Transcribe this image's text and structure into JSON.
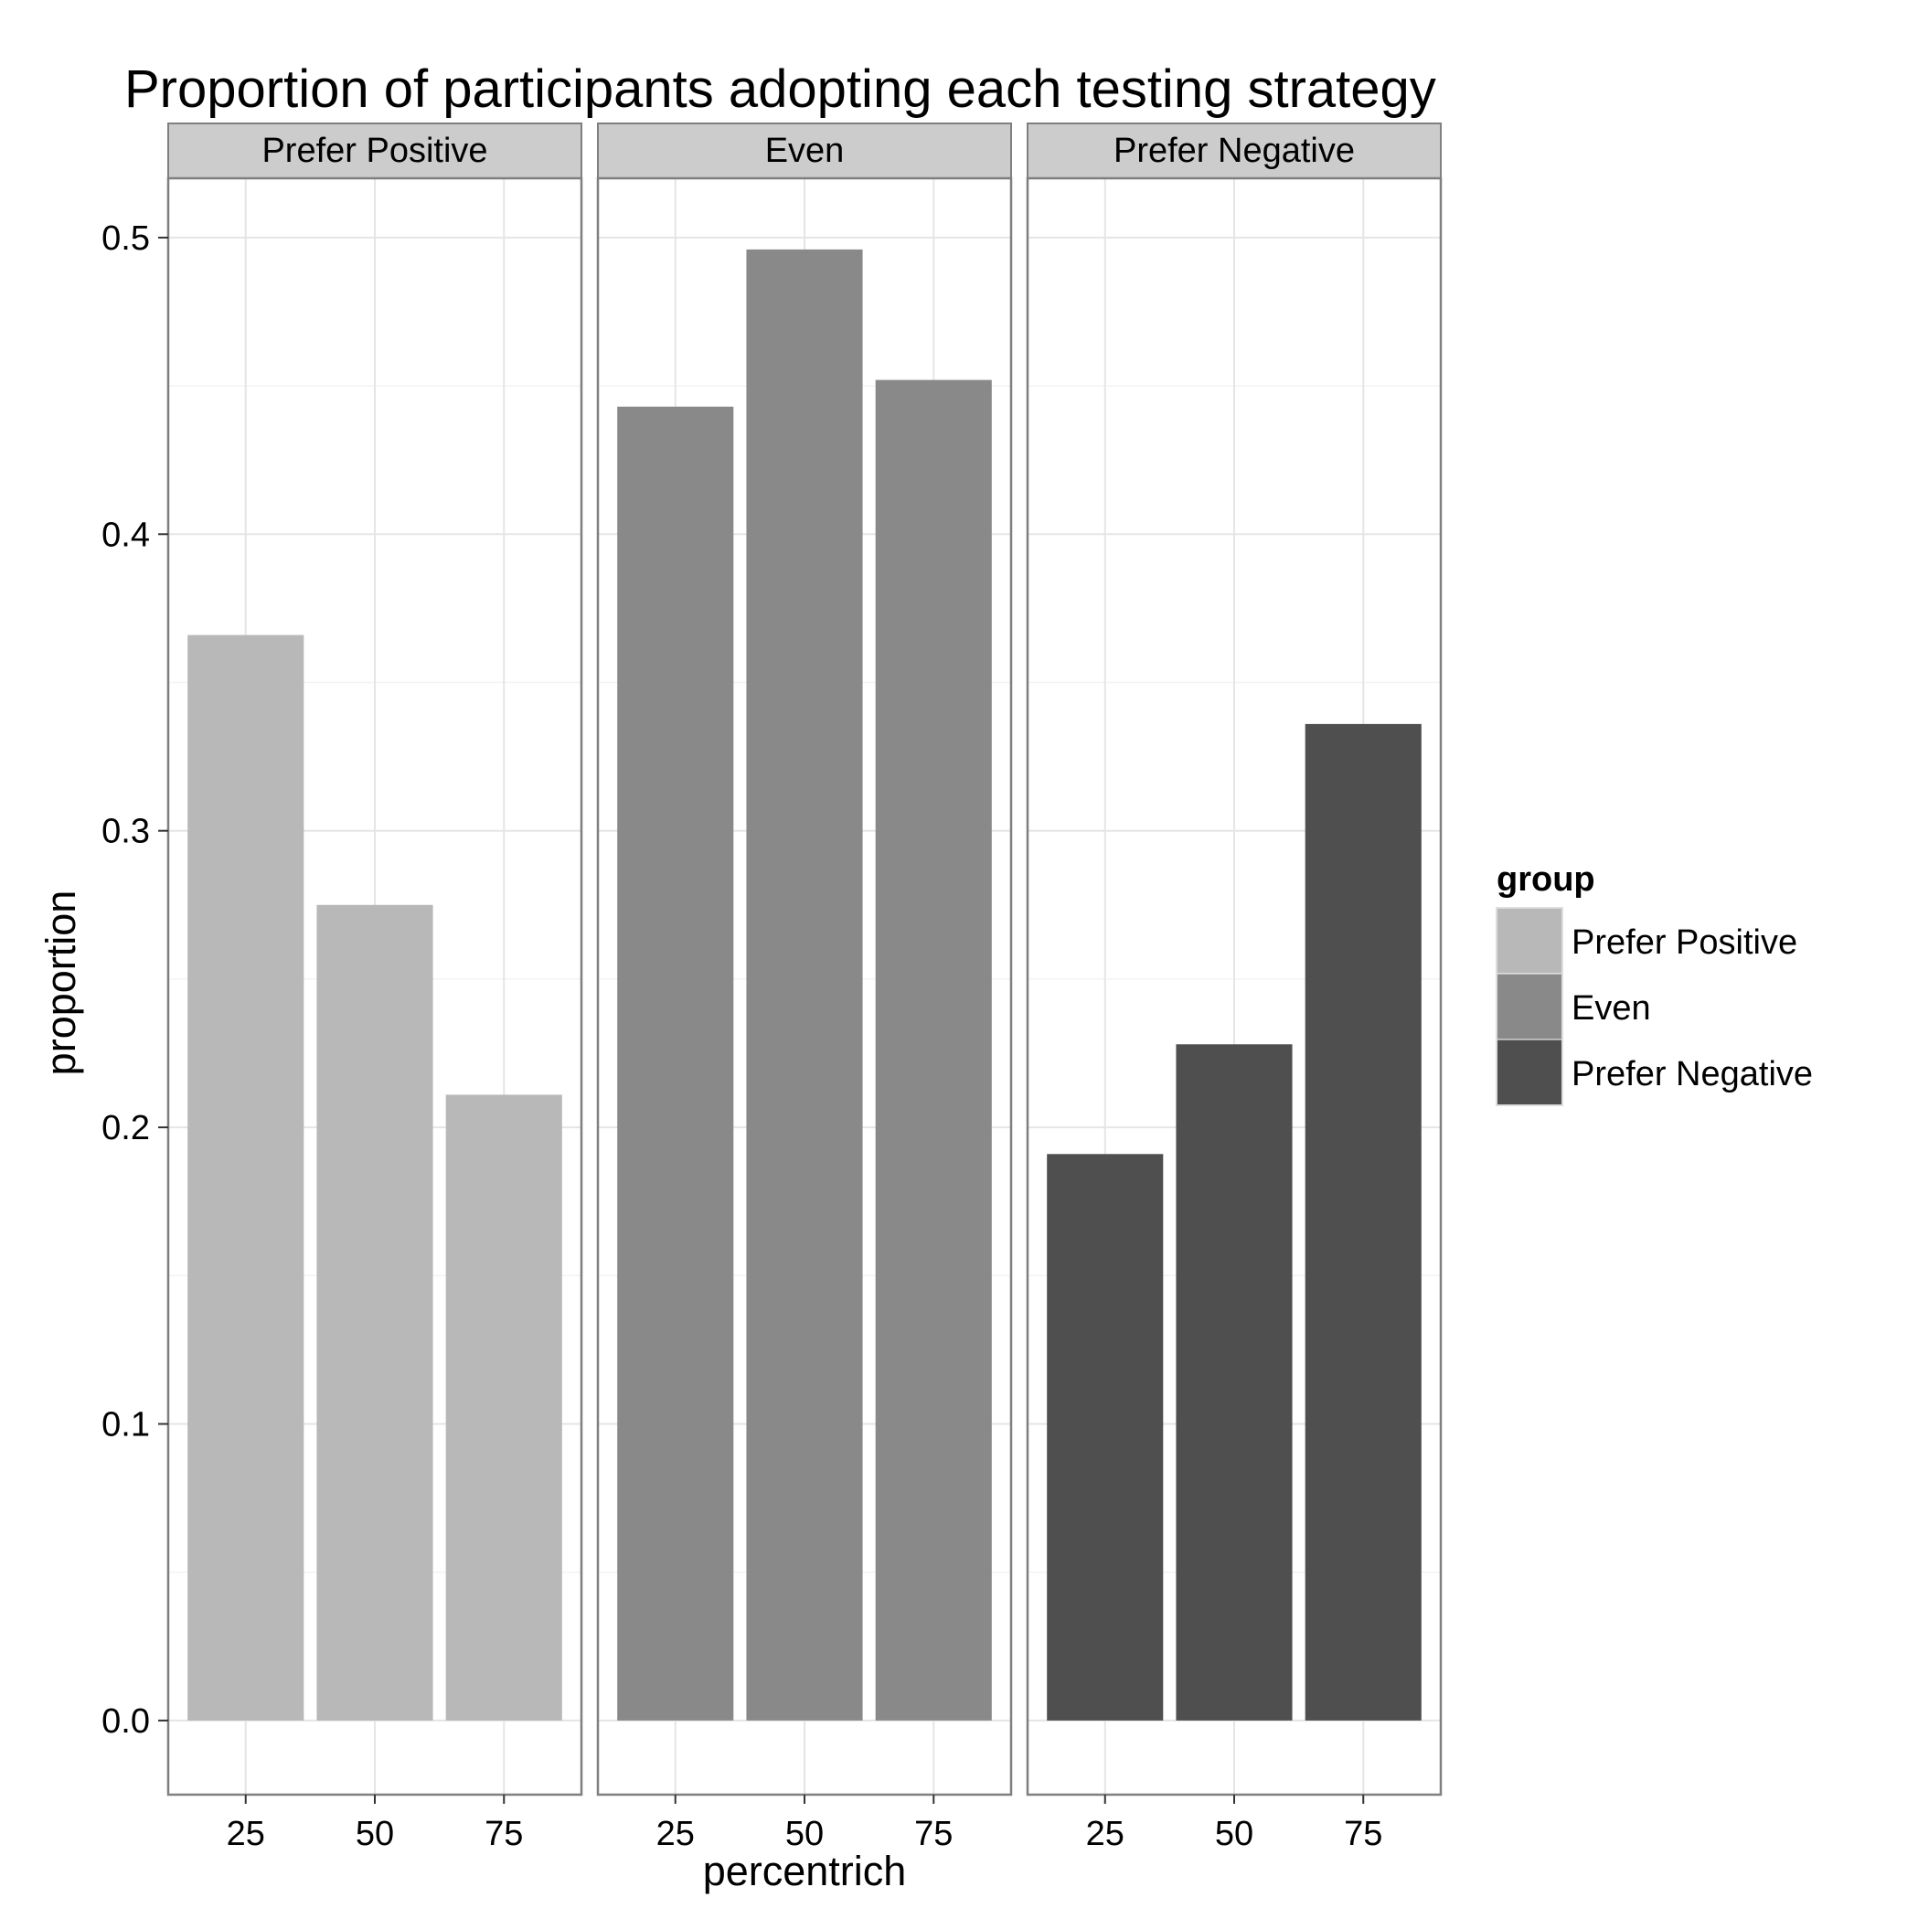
{
  "chart_data": {
    "type": "bar",
    "title": "Proportion of participants adopting each testing strategy",
    "xlabel": "percentrich",
    "ylabel": "proportion",
    "ylim": [
      -0.025,
      0.52
    ],
    "yticks": [
      "0.0",
      "0.1",
      "0.2",
      "0.3",
      "0.4",
      "0.5"
    ],
    "ytick_values": [
      0,
      0.1,
      0.2,
      0.3,
      0.4,
      0.5
    ],
    "categories": [
      "25",
      "50",
      "75"
    ],
    "grid": true,
    "legend_position": "right",
    "legend_title": "group",
    "panels": [
      {
        "name": "Prefer Positive",
        "color": "#b8b8b8",
        "values": [
          0.366,
          0.275,
          0.211
        ]
      },
      {
        "name": "Even",
        "color": "#898989",
        "values": [
          0.443,
          0.496,
          0.452
        ]
      },
      {
        "name": "Prefer Negative",
        "color": "#4f4f4f",
        "values": [
          0.191,
          0.228,
          0.336
        ]
      }
    ]
  }
}
